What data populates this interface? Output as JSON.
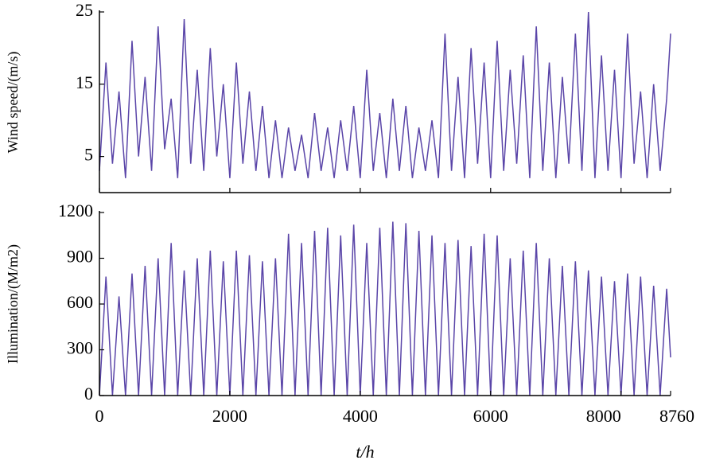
{
  "chart_data": [
    {
      "type": "line",
      "ylabel": "Wind speed/(m/s)",
      "x": [
        0,
        100,
        200,
        300,
        400,
        500,
        600,
        700,
        800,
        900,
        1000,
        1100,
        1200,
        1300,
        1400,
        1500,
        1600,
        1700,
        1800,
        1900,
        2000,
        2100,
        2200,
        2300,
        2400,
        2500,
        2600,
        2700,
        2800,
        2900,
        3000,
        3100,
        3200,
        3300,
        3400,
        3500,
        3600,
        3700,
        3800,
        3900,
        4000,
        4100,
        4200,
        4300,
        4400,
        4500,
        4600,
        4700,
        4800,
        4900,
        5000,
        5100,
        5200,
        5300,
        5400,
        5500,
        5600,
        5700,
        5800,
        5900,
        6000,
        6100,
        6200,
        6300,
        6400,
        6500,
        6600,
        6700,
        6800,
        6900,
        7000,
        7100,
        7200,
        7300,
        7400,
        7500,
        7600,
        7700,
        7800,
        7900,
        8000,
        8100,
        8200,
        8300,
        8400,
        8500,
        8600,
        8700,
        8760
      ],
      "series": [
        {
          "color": "#5a45a8",
          "values": [
            3,
            18,
            4,
            14,
            2,
            21,
            5,
            16,
            3,
            23,
            6,
            13,
            2,
            24,
            4,
            17,
            3,
            20,
            5,
            15,
            2,
            18,
            4,
            14,
            3,
            12,
            2,
            10,
            2,
            9,
            3,
            8,
            2,
            11,
            3,
            9,
            2,
            10,
            3,
            12,
            2,
            17,
            3,
            11,
            2,
            13,
            3,
            12,
            2,
            9,
            3,
            10,
            2,
            22,
            3,
            16,
            2,
            20,
            4,
            18,
            2,
            21,
            3,
            17,
            4,
            19,
            2,
            23,
            3,
            18,
            2,
            16,
            4,
            22,
            3,
            25,
            2,
            19,
            3,
            17,
            2,
            22,
            4,
            14,
            2,
            15,
            3,
            13,
            22
          ]
        }
      ],
      "xlim": [
        0,
        8760
      ],
      "xticks": [
        0,
        2000,
        4000,
        6000,
        8000,
        8760
      ],
      "ylim": [
        0,
        25
      ],
      "yticks": [
        5,
        15,
        25
      ]
    },
    {
      "type": "line",
      "ylabel": "Illumination/(M/m2)",
      "xlabel": "t/h",
      "x": [
        0,
        100,
        200,
        300,
        400,
        500,
        600,
        700,
        800,
        900,
        1000,
        1100,
        1200,
        1300,
        1400,
        1500,
        1600,
        1700,
        1800,
        1900,
        2000,
        2100,
        2200,
        2300,
        2400,
        2500,
        2600,
        2700,
        2800,
        2900,
        3000,
        3100,
        3200,
        3300,
        3400,
        3500,
        3600,
        3700,
        3800,
        3900,
        4000,
        4100,
        4200,
        4300,
        4400,
        4500,
        4600,
        4700,
        4800,
        4900,
        5000,
        5100,
        5200,
        5300,
        5400,
        5500,
        5600,
        5700,
        5800,
        5900,
        6000,
        6100,
        6200,
        6300,
        6400,
        6500,
        6600,
        6700,
        6800,
        6900,
        7000,
        7100,
        7200,
        7300,
        7400,
        7500,
        7600,
        7700,
        7800,
        7900,
        8000,
        8100,
        8200,
        8300,
        8400,
        8500,
        8600,
        8700,
        8760
      ],
      "series": [
        {
          "color": "#5a45a8",
          "values": [
            0,
            780,
            0,
            650,
            0,
            800,
            0,
            850,
            0,
            900,
            0,
            1000,
            0,
            820,
            0,
            900,
            0,
            950,
            0,
            880,
            0,
            950,
            0,
            920,
            0,
            880,
            0,
            900,
            0,
            1060,
            0,
            1000,
            0,
            1080,
            0,
            1100,
            0,
            1050,
            0,
            1120,
            0,
            1000,
            0,
            1100,
            0,
            1140,
            0,
            1130,
            0,
            1080,
            0,
            1050,
            0,
            1000,
            0,
            1020,
            0,
            980,
            0,
            1060,
            0,
            1050,
            0,
            900,
            0,
            950,
            0,
            1000,
            0,
            900,
            0,
            850,
            0,
            880,
            0,
            820,
            0,
            780,
            0,
            750,
            0,
            800,
            0,
            780,
            0,
            720,
            0,
            700,
            250
          ]
        }
      ],
      "xlim": [
        0,
        8760
      ],
      "xticks": [
        0,
        2000,
        4000,
        6000,
        8000,
        8760
      ],
      "ylim": [
        0,
        1200
      ],
      "yticks": [
        0,
        300,
        600,
        900,
        1200
      ]
    }
  ]
}
